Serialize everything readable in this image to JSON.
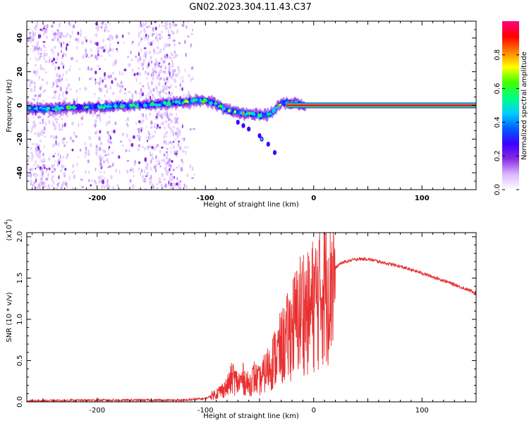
{
  "title": "GN02.2023.304.11.43.C37",
  "chart_data": [
    {
      "type": "heatmap",
      "xlabel": "Height of straight line (km)",
      "ylabel": "Frequency (Hz)",
      "xlim": [
        -265,
        150
      ],
      "ylim": [
        -50,
        50
      ],
      "x_ticks": [
        -200,
        -100,
        0,
        100
      ],
      "x_tick_labels": [
        "-200",
        "-100",
        "0",
        "100"
      ],
      "y_ticks": [
        40,
        20,
        0,
        -20,
        -40
      ],
      "y_tick_labels": [
        "40",
        "20",
        "0",
        "-20",
        "-40"
      ],
      "colorbar": {
        "label": "Normalized spectral amplitude",
        "range": [
          0,
          1
        ],
        "ticks": [
          0.0,
          0.2,
          0.4,
          0.6,
          0.8
        ],
        "tick_labels": [
          "0.0",
          "0.2",
          "0.4",
          "0.6",
          "0.8"
        ],
        "colors": [
          "#ffffff",
          "#d9b8ff",
          "#8a2be2",
          "#3a00ff",
          "#0060ff",
          "#00d0ff",
          "#00ff80",
          "#40ff00",
          "#ffff00",
          "#ff8000",
          "#ff0000",
          "#ff0080"
        ]
      },
      "ridge": {
        "x": [
          -265,
          -240,
          -220,
          -200,
          -180,
          -160,
          -140,
          -120,
          -110,
          -100,
          -90,
          -80,
          -70,
          -60,
          -50,
          -45,
          -40,
          -35,
          -30,
          -25,
          -20,
          -15,
          -10,
          -5,
          0,
          150
        ],
        "frequency": [
          -2,
          -2,
          -1,
          -1,
          0,
          0,
          1,
          2,
          3,
          3,
          1,
          -3,
          -4,
          -5,
          -6,
          -6,
          -5,
          -2,
          1,
          2,
          1,
          1,
          0,
          1,
          0,
          0
        ]
      },
      "tone_line": {
        "x": [
          -25,
          150
        ],
        "frequency": 0
      }
    },
    {
      "type": "line",
      "xlabel": "Height of straight line (km)",
      "ylabel": "SNR (10 * v/v)",
      "scale_label": "(x10",
      "scale_exponent": "4",
      "scale_suffix": ")",
      "xlim": [
        -265,
        150
      ],
      "ylim": [
        0,
        2.05
      ],
      "x_ticks": [
        -200,
        -100,
        0,
        100
      ],
      "x_tick_labels": [
        "-200",
        "-100",
        "0",
        "100"
      ],
      "y_ticks": [
        0.0,
        0.5,
        1.0,
        1.5,
        2.0
      ],
      "y_tick_labels": [
        "0.0",
        "0.5",
        "1.0",
        "1.5",
        "2.0"
      ],
      "color": "#e83030",
      "series": [
        {
          "x": [
            -265,
            -200,
            -150,
            -120,
            -100,
            -90,
            -80,
            -75,
            -70,
            -65,
            -60,
            -55,
            -50,
            -45,
            -40,
            -35,
            -30,
            -25,
            -20,
            -15,
            -10,
            -5,
            0,
            5,
            10,
            15,
            20,
            25,
            30,
            40,
            50,
            60,
            80,
            100,
            120,
            150
          ],
          "values": [
            0.01,
            0.02,
            0.02,
            0.02,
            0.04,
            0.1,
            0.18,
            0.3,
            0.22,
            0.28,
            0.2,
            0.3,
            0.25,
            0.35,
            0.45,
            0.55,
            0.65,
            0.75,
            0.9,
            1.0,
            1.15,
            1.05,
            1.2,
            1.3,
            1.45,
            1.55,
            1.62,
            1.68,
            1.7,
            1.73,
            1.73,
            1.7,
            1.64,
            1.56,
            1.47,
            1.32
          ]
        }
      ]
    }
  ]
}
